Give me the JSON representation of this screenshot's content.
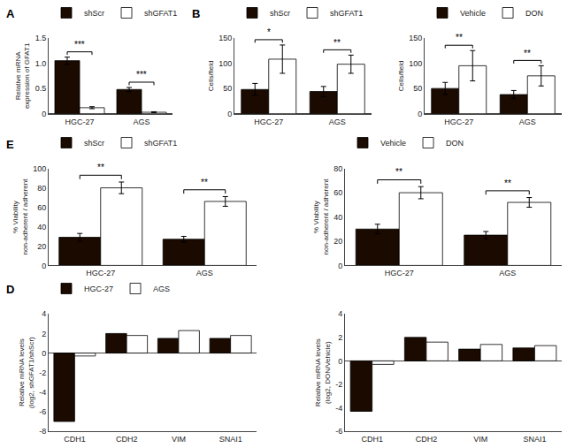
{
  "chart_data": [
    {
      "type": "bar",
      "title": "A",
      "categories": [
        "HGC-27",
        "AGS"
      ],
      "series": [
        {
          "name": "shScr",
          "color": "#1a0a00",
          "values": [
            1.05,
            0.48
          ],
          "errors": [
            0.07,
            0.04
          ]
        },
        {
          "name": "shGFAT1",
          "color": "#ffffff",
          "values": [
            0.12,
            0.03
          ],
          "errors": [
            0.02,
            0.01
          ]
        }
      ],
      "ylabel": "Relative mRNA\nexpression of GFAT1",
      "ylim": [
        0,
        1.5
      ],
      "yticks": [
        0,
        0.5,
        {
          "value": 1,
          "label": "1.0"
        },
        1.5
      ],
      "grid": false,
      "legend": "top",
      "annotations": [
        {
          "x": "HGC-27",
          "text": "***"
        },
        {
          "x": "AGS",
          "text": "***"
        }
      ]
    },
    {
      "type": "bar",
      "title": "B",
      "categories": [
        "HGC-27",
        "AGS"
      ],
      "series": [
        {
          "name": "shScr",
          "color": "#1a0a00",
          "values": [
            48,
            44
          ],
          "errors": [
            12,
            10
          ]
        },
        {
          "name": "shGFAT1",
          "color": "#ffffff",
          "values": [
            108,
            98
          ],
          "errors": [
            28,
            18
          ]
        }
      ],
      "ylabel": "Cells/field",
      "ylim": [
        0,
        150
      ],
      "yticks": [
        0,
        50,
        100,
        150
      ],
      "grid": false,
      "legend": "top",
      "annotations": [
        {
          "x": "HGC-27",
          "text": "*"
        },
        {
          "x": "AGS",
          "text": "**"
        }
      ]
    },
    {
      "type": "bar",
      "categories": [
        "HGC-27",
        "AGS"
      ],
      "series": [
        {
          "name": "Vehicle",
          "color": "#1a0a00",
          "values": [
            50,
            38
          ],
          "errors": [
            12,
            8
          ]
        },
        {
          "name": "DON",
          "color": "#ffffff",
          "values": [
            95,
            75
          ],
          "errors": [
            30,
            20
          ]
        }
      ],
      "ylabel": "Cells/field",
      "ylim": [
        0,
        150
      ],
      "yticks": [
        0,
        50,
        100,
        150
      ],
      "grid": false,
      "legend": "top",
      "annotations": [
        {
          "x": "HGC-27",
          "text": "**"
        },
        {
          "x": "AGS",
          "text": "**"
        }
      ]
    },
    {
      "type": "bar",
      "title": "E",
      "categories": [
        "HGC-27",
        "AGS"
      ],
      "series": [
        {
          "name": "shScr",
          "color": "#1a0a00",
          "values": [
            29,
            27
          ],
          "errors": [
            4,
            3
          ]
        },
        {
          "name": "shGFAT1",
          "color": "#ffffff",
          "values": [
            80,
            66
          ],
          "errors": [
            6,
            5
          ]
        }
      ],
      "ylabel": "% Viability\nnon-adherent / adherent",
      "ylim": [
        0,
        100
      ],
      "yticks": [
        0,
        20,
        40,
        60,
        80,
        100
      ],
      "grid": false,
      "legend": "top",
      "annotations": [
        {
          "x": "HGC-27",
          "text": "**"
        },
        {
          "x": "AGS",
          "text": "**"
        }
      ]
    },
    {
      "type": "bar",
      "categories": [
        "HGC-27",
        "AGS"
      ],
      "series": [
        {
          "name": "Vehicle",
          "color": "#1a0a00",
          "values": [
            30,
            25
          ],
          "errors": [
            4,
            3
          ]
        },
        {
          "name": "DON",
          "color": "#ffffff",
          "values": [
            60,
            52
          ],
          "errors": [
            5,
            4
          ]
        }
      ],
      "ylabel": "% Viability\nnon-adherent / adherent",
      "ylim": [
        0,
        80
      ],
      "yticks": [
        0,
        20,
        40,
        60,
        80
      ],
      "grid": false,
      "legend": "top",
      "annotations": [
        {
          "x": "HGC-27",
          "text": "**"
        },
        {
          "x": "AGS",
          "text": "**"
        }
      ]
    },
    {
      "type": "bar",
      "title": "D",
      "categories": [
        "CDH1",
        "CDH2",
        "VIM",
        "SNAI1"
      ],
      "series": [
        {
          "name": "HGC-27",
          "color": "#1a0a00",
          "values": [
            -7.0,
            2.0,
            1.5,
            1.5
          ]
        },
        {
          "name": "AGS",
          "color": "#ffffff",
          "values": [
            -0.3,
            1.8,
            2.3,
            1.8
          ]
        }
      ],
      "ylabel": "Relative mRNA levels\n(log2, shGFAT1/shScr)",
      "ylim": [
        -8,
        4
      ],
      "yticks": [
        -8,
        -6,
        -4,
        -2,
        0,
        2,
        4
      ],
      "grid": false,
      "legend": "top"
    },
    {
      "type": "bar",
      "categories": [
        "CDH1",
        "CDH2",
        "VIM",
        "SNAI1"
      ],
      "series": [
        {
          "name": "HGC-27",
          "color": "#1a0a00",
          "values": [
            -4.3,
            2.0,
            1.0,
            1.1
          ]
        },
        {
          "name": "AGS",
          "color": "#ffffff",
          "values": [
            -0.3,
            1.6,
            1.4,
            1.3
          ]
        }
      ],
      "ylabel": "Relative mRNA levels\n(log2, DON/Vehicle)",
      "ylim": [
        -6,
        4
      ],
      "yticks": [
        -6,
        -4,
        -2,
        0,
        2,
        4
      ],
      "grid": false
    }
  ]
}
